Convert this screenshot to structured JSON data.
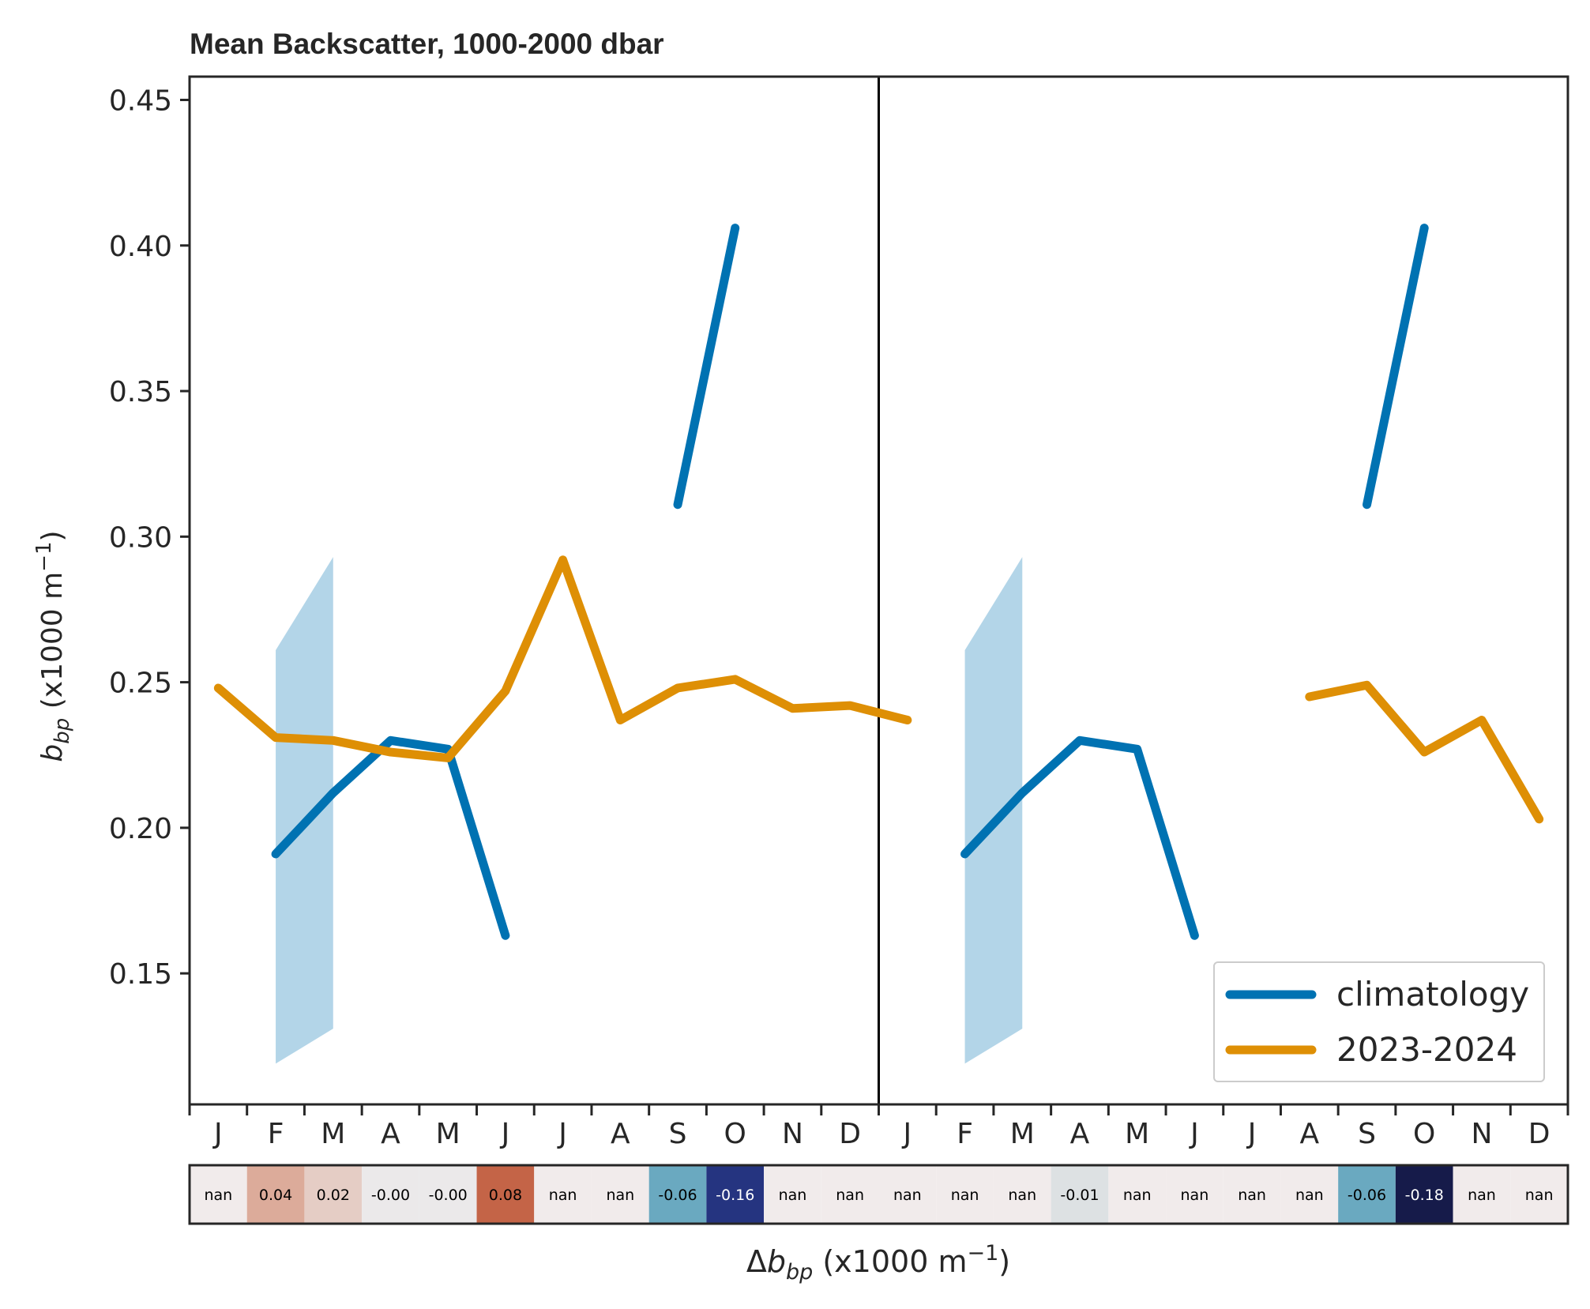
{
  "chart_data": {
    "type": "line",
    "title": "Mean Backscatter, 1000-2000 dbar",
    "ylabel": {
      "symbol": "b",
      "subscript": "bp",
      "unit_prefix": " (x1000 m",
      "unit_sup": "−1",
      "unit_suffix": ")"
    },
    "xlabel": {
      "prefix": "Δ",
      "symbol": "b",
      "subscript": "bp",
      "unit_prefix": " (x1000 m",
      "unit_sup": "−1",
      "unit_suffix": ")"
    },
    "ylim": [
      0.105,
      0.458
    ],
    "yticks": [
      0.15,
      0.2,
      0.25,
      0.3,
      0.35,
      0.4,
      0.45
    ],
    "ytick_labels": [
      "0.15",
      "0.20",
      "0.25",
      "0.30",
      "0.35",
      "0.40",
      "0.45"
    ],
    "xlim": [
      -0.5,
      23.5
    ],
    "divider_x": 11.5,
    "month_labels": [
      "J",
      "F",
      "M",
      "A",
      "M",
      "J",
      "J",
      "A",
      "S",
      "O",
      "N",
      "D",
      "J",
      "F",
      "M",
      "A",
      "M",
      "J",
      "J",
      "A",
      "S",
      "O",
      "N",
      "D"
    ],
    "series": [
      {
        "name": "climatology",
        "color": "#0072b2",
        "segments": [
          [
            [
              1,
              0.191
            ],
            [
              2,
              0.212
            ],
            [
              3,
              0.23
            ],
            [
              4,
              0.227
            ],
            [
              5,
              0.163
            ]
          ],
          [
            [
              8,
              0.311
            ],
            [
              9,
              0.406
            ]
          ],
          [
            [
              13,
              0.191
            ],
            [
              14,
              0.212
            ],
            [
              15,
              0.23
            ],
            [
              16,
              0.227
            ],
            [
              17,
              0.163
            ]
          ],
          [
            [
              20,
              0.311
            ],
            [
              21,
              0.406
            ]
          ]
        ],
        "band_color": "#b3d5e8",
        "bands": [
          [
            [
              1,
              0.119,
              0.261
            ],
            [
              2,
              0.131,
              0.293
            ]
          ],
          [
            [
              13,
              0.119,
              0.261
            ],
            [
              14,
              0.131,
              0.293
            ]
          ]
        ]
      },
      {
        "name": "2023-2024",
        "color": "#de8f05",
        "segments": [
          [
            [
              0,
              0.248
            ],
            [
              1,
              0.231
            ],
            [
              2,
              0.23
            ],
            [
              3,
              0.226
            ],
            [
              4,
              0.224
            ],
            [
              5,
              0.247
            ],
            [
              6,
              0.292
            ],
            [
              7,
              0.237
            ],
            [
              8,
              0.248
            ],
            [
              9,
              0.251
            ],
            [
              10,
              0.241
            ],
            [
              11,
              0.242
            ],
            [
              12,
              0.237
            ]
          ],
          [
            [
              19,
              0.245
            ],
            [
              20,
              0.249
            ],
            [
              21,
              0.226
            ],
            [
              22,
              0.237
            ],
            [
              23,
              0.203
            ]
          ]
        ]
      }
    ],
    "legend": {
      "placement": "lower-right",
      "entries": [
        "climatology",
        "2023-2024"
      ]
    },
    "difference_strip": {
      "labels": [
        "nan",
        "0.04",
        "0.02",
        "-0.00",
        "-0.00",
        "0.08",
        "nan",
        "nan",
        "-0.06",
        "-0.16",
        "nan",
        "nan",
        "nan",
        "nan",
        "nan",
        "-0.01",
        "nan",
        "nan",
        "nan",
        "nan",
        "-0.06",
        "-0.18",
        "nan",
        "nan"
      ],
      "colors": [
        "#f1ebeb",
        "#dcab9a",
        "#e5cdc5",
        "#ebe9ea",
        "#ebe9ea",
        "#c46447",
        "#f1ebeb",
        "#f1ebeb",
        "#6aa9c0",
        "#253480",
        "#f1ebeb",
        "#f1ebeb",
        "#f1ebeb",
        "#f1ebeb",
        "#f1ebeb",
        "#dde1e3",
        "#f1ebeb",
        "#f1ebeb",
        "#f1ebeb",
        "#f1ebeb",
        "#6aa9c0",
        "#161b4a",
        "#f1ebeb",
        "#f1ebeb"
      ],
      "light_text_indices": [
        9,
        21
      ]
    }
  }
}
